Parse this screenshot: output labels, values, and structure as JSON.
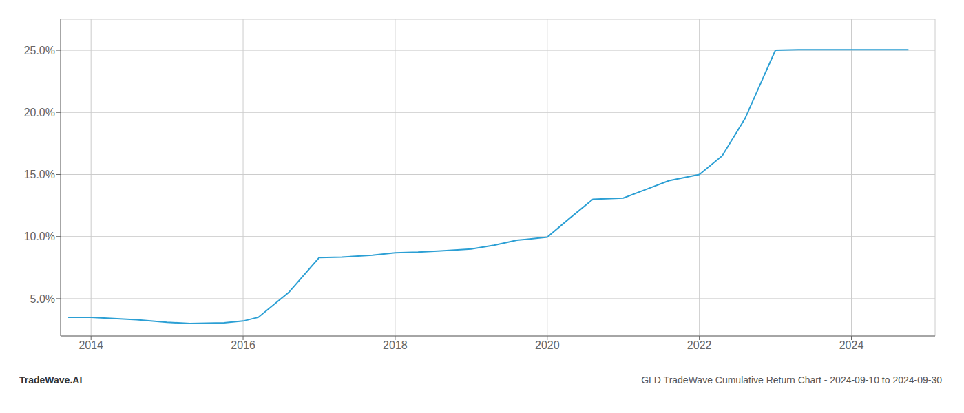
{
  "chart_data": {
    "type": "line",
    "title": "GLD TradeWave Cumulative Return Chart - 2024-09-10 to 2024-09-30",
    "annotations": [
      "TradeWave.AI"
    ],
    "x": [
      2013.7,
      2014.0,
      2014.6,
      2015.0,
      2015.3,
      2015.75,
      2016.0,
      2016.2,
      2016.6,
      2017.0,
      2017.3,
      2017.7,
      2018.0,
      2018.3,
      2018.6,
      2019.0,
      2019.3,
      2019.6,
      2020.0,
      2020.3,
      2020.6,
      2021.0,
      2021.3,
      2021.6,
      2022.0,
      2022.3,
      2022.6,
      2023.0,
      2023.3,
      2023.6,
      2024.0,
      2024.3,
      2024.75
    ],
    "values": [
      3.5,
      3.5,
      3.3,
      3.1,
      3.0,
      3.05,
      3.2,
      3.5,
      5.5,
      8.3,
      8.35,
      8.5,
      8.7,
      8.75,
      8.85,
      9.0,
      9.3,
      9.7,
      9.95,
      11.5,
      13.0,
      13.1,
      13.8,
      14.5,
      15.0,
      16.5,
      19.5,
      25.0,
      25.05,
      25.05,
      25.05,
      25.05,
      25.05
    ],
    "color": "#2b9fd4",
    "xlim": [
      2013.6,
      2025.1
    ],
    "ylim": [
      2.0,
      27.5
    ],
    "xticks": [
      2014,
      2016,
      2018,
      2020,
      2022,
      2024
    ],
    "yticks": [
      {
        "value": 5.0,
        "label": "5.0%"
      },
      {
        "value": 10.0,
        "label": "10.0%"
      },
      {
        "value": 15.0,
        "label": "15.0%"
      },
      {
        "value": 20.0,
        "label": "20.0%"
      },
      {
        "value": 25.0,
        "label": "25.0%"
      }
    ],
    "grid": true
  }
}
